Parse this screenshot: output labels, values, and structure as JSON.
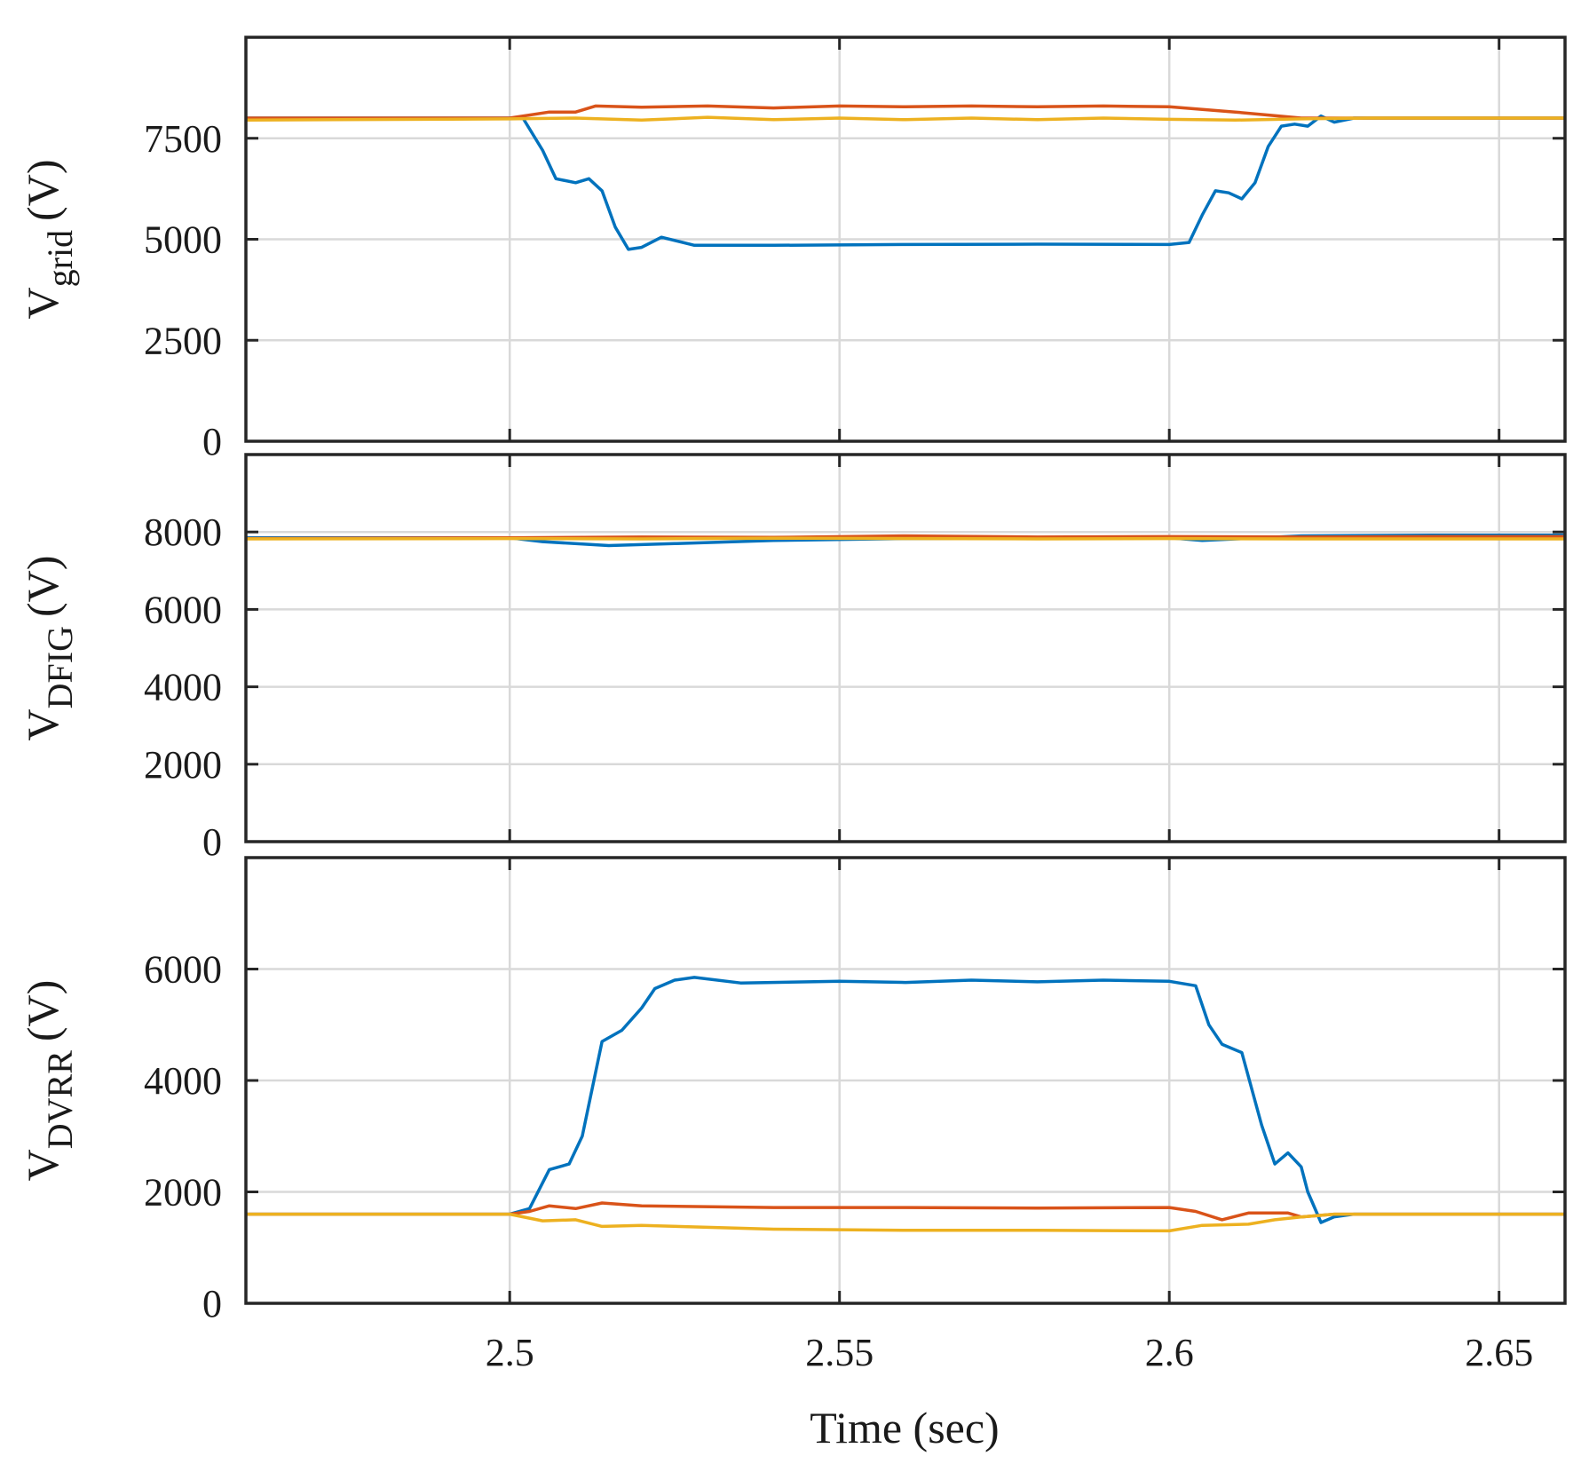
{
  "chart_data": {
    "type": "line",
    "layout": "3 vertically stacked panels sharing the x axis",
    "colors": [
      "#0072BD",
      "#D95319",
      "#EDB120"
    ],
    "grid": true,
    "legend": "none",
    "x_axis": {
      "label": "Time (sec)",
      "xlim": [
        2.46,
        2.66
      ],
      "ticks": [
        2.5,
        2.55,
        2.6,
        2.65
      ],
      "tick_labels": [
        "2.5",
        "2.55",
        "2.6",
        "2.65"
      ]
    },
    "panels": [
      {
        "ylabel_main": "V",
        "ylabel_sub": "grid",
        "ylabel_unit": "(V)",
        "ylim": [
          0,
          10000
        ],
        "yticks": [
          0,
          2500,
          5000,
          7500
        ],
        "ytick_labels": [
          "0",
          "2500",
          "5000",
          "7500"
        ],
        "series": [
          {
            "color": "#0072BD",
            "x": [
              2.46,
              2.49,
              2.502,
              2.505,
              2.507,
              2.51,
              2.512,
              2.514,
              2.516,
              2.518,
              2.52,
              2.523,
              2.528,
              2.54,
              2.56,
              2.58,
              2.6,
              2.603,
              2.605,
              2.607,
              2.609,
              2.611,
              2.613,
              2.615,
              2.617,
              2.619,
              2.621,
              2.623,
              2.625,
              2.628,
              2.66
            ],
            "y": [
              8000,
              8000,
              8000,
              7200,
              6500,
              6400,
              6500,
              6200,
              5300,
              4750,
              4800,
              5050,
              4850,
              4850,
              4870,
              4880,
              4870,
              4920,
              5600,
              6200,
              6150,
              6000,
              6400,
              7300,
              7800,
              7850,
              7800,
              8050,
              7900,
              8000,
              8000
            ]
          },
          {
            "color": "#D95319",
            "x": [
              2.46,
              2.5,
              2.506,
              2.51,
              2.513,
              2.52,
              2.53,
              2.54,
              2.55,
              2.56,
              2.57,
              2.58,
              2.59,
              2.6,
              2.61,
              2.62,
              2.63,
              2.66
            ],
            "y": [
              8000,
              8000,
              8150,
              8150,
              8300,
              8270,
              8300,
              8250,
              8300,
              8280,
              8300,
              8280,
              8300,
              8280,
              8150,
              8000,
              8000,
              8000
            ]
          },
          {
            "color": "#EDB120",
            "x": [
              2.46,
              2.5,
              2.51,
              2.52,
              2.53,
              2.54,
              2.55,
              2.56,
              2.57,
              2.58,
              2.59,
              2.6,
              2.61,
              2.62,
              2.63,
              2.66
            ],
            "y": [
              7950,
              7980,
              8000,
              7950,
              8020,
              7960,
              8000,
              7960,
              8000,
              7960,
              8000,
              7970,
              7950,
              7980,
              8000,
              8000
            ]
          }
        ]
      },
      {
        "ylabel_main": "V",
        "ylabel_sub": "DFIG",
        "ylabel_unit": "(V)",
        "ylim": [
          0,
          10000
        ],
        "yticks": [
          0,
          2000,
          4000,
          6000,
          8000
        ],
        "ytick_labels": [
          "0",
          "2000",
          "4000",
          "6000",
          "8000"
        ],
        "series": [
          {
            "color": "#0072BD",
            "x": [
              2.46,
              2.5,
              2.505,
              2.515,
              2.525,
              2.54,
              2.56,
              2.58,
              2.6,
              2.605,
              2.62,
              2.64,
              2.66
            ],
            "y": [
              7850,
              7850,
              7750,
              7650,
              7700,
              7780,
              7830,
              7830,
              7850,
              7780,
              7900,
              7920,
              7920
            ]
          },
          {
            "color": "#D95319",
            "x": [
              2.46,
              2.5,
              2.52,
              2.54,
              2.56,
              2.58,
              2.6,
              2.62,
              2.64,
              2.66
            ],
            "y": [
              7830,
              7850,
              7870,
              7860,
              7900,
              7870,
              7880,
              7870,
              7880,
              7880
            ]
          },
          {
            "color": "#EDB120",
            "x": [
              2.46,
              2.5,
              2.52,
              2.54,
              2.56,
              2.58,
              2.6,
              2.62,
              2.64,
              2.66
            ],
            "y": [
              7820,
              7830,
              7820,
              7840,
              7830,
              7820,
              7830,
              7820,
              7820,
              7820
            ]
          }
        ]
      },
      {
        "ylabel_main": "V",
        "ylabel_sub": "DVRR",
        "ylabel_unit": "(V)",
        "ylim": [
          0,
          8000
        ],
        "yticks": [
          0,
          2000,
          4000,
          6000
        ],
        "ytick_labels": [
          "0",
          "2000",
          "4000",
          "6000"
        ],
        "series": [
          {
            "color": "#0072BD",
            "x": [
              2.46,
              2.5,
              2.503,
              2.506,
              2.509,
              2.511,
              2.514,
              2.517,
              2.52,
              2.522,
              2.525,
              2.528,
              2.535,
              2.55,
              2.56,
              2.57,
              2.58,
              2.59,
              2.6,
              2.604,
              2.606,
              2.608,
              2.611,
              2.614,
              2.616,
              2.618,
              2.62,
              2.621,
              2.623,
              2.625,
              2.628,
              2.66
            ],
            "y": [
              1600,
              1600,
              1700,
              2400,
              2500,
              3000,
              4700,
              4900,
              5300,
              5650,
              5800,
              5850,
              5750,
              5780,
              5760,
              5800,
              5770,
              5800,
              5780,
              5700,
              5000,
              4650,
              4500,
              3200,
              2500,
              2700,
              2450,
              2000,
              1450,
              1550,
              1600,
              1600
            ]
          },
          {
            "color": "#D95319",
            "x": [
              2.46,
              2.5,
              2.503,
              2.506,
              2.51,
              2.514,
              2.52,
              2.54,
              2.56,
              2.58,
              2.6,
              2.604,
              2.608,
              2.612,
              2.618,
              2.62,
              2.625,
              2.66
            ],
            "y": [
              1600,
              1600,
              1650,
              1750,
              1700,
              1800,
              1750,
              1720,
              1720,
              1710,
              1720,
              1650,
              1500,
              1620,
              1620,
              1550,
              1600,
              1600
            ]
          },
          {
            "color": "#EDB120",
            "x": [
              2.46,
              2.5,
              2.505,
              2.51,
              2.514,
              2.52,
              2.54,
              2.56,
              2.58,
              2.6,
              2.605,
              2.612,
              2.616,
              2.62,
              2.625,
              2.66
            ],
            "y": [
              1600,
              1600,
              1480,
              1500,
              1380,
              1400,
              1330,
              1310,
              1310,
              1300,
              1400,
              1420,
              1500,
              1550,
              1600,
              1600
            ]
          }
        ]
      }
    ]
  }
}
